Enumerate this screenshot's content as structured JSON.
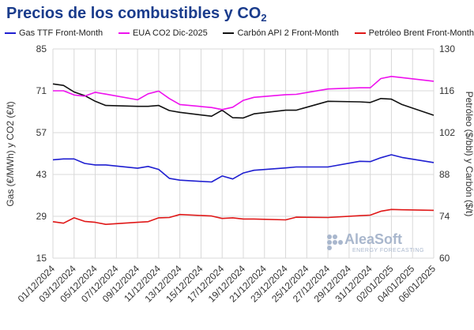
{
  "title_main": "Precios de los combustibles y CO",
  "title_subscript": "2",
  "watermark": {
    "brand": "AleaSoft",
    "tagline": "ENERGY FORECASTING"
  },
  "colors": {
    "gas": "#1f1fd1",
    "eua": "#ee11ee",
    "carbon": "#111111",
    "brent": "#e01818",
    "grid": "#d8d8d8",
    "axis_text": "#333333"
  },
  "chart_data": {
    "type": "line",
    "grid": true,
    "legend_position": "top",
    "x": [
      "01/12/2024",
      "02/12/2024",
      "03/12/2024",
      "04/12/2024",
      "05/12/2024",
      "06/12/2024",
      "09/12/2024",
      "10/12/2024",
      "11/12/2024",
      "12/12/2024",
      "13/12/2024",
      "16/12/2024",
      "17/12/2024",
      "18/12/2024",
      "19/12/2024",
      "20/12/2024",
      "23/12/2024",
      "24/12/2024",
      "27/12/2024",
      "30/12/2024",
      "31/12/2024",
      "01/01/2025",
      "02/01/2025",
      "03/01/2025",
      "06/01/2025"
    ],
    "x_tick_labels": [
      "01/12/2024",
      "03/12/2024",
      "05/12/2024",
      "07/12/2024",
      "09/12/2024",
      "11/12/2024",
      "13/12/2024",
      "15/12/2024",
      "17/12/2024",
      "19/12/2024",
      "21/12/2024",
      "23/12/2024",
      "25/12/2024",
      "27/12/2024",
      "29/12/2024",
      "31/12/2024",
      "02/01/2025",
      "04/01/2025",
      "06/01/2025"
    ],
    "x_start": "01/12/2024",
    "x_end": "06/01/2025",
    "y_left": {
      "label": "Gas (€/MWh) y CO2 (€/t)",
      "min": 15,
      "max": 85,
      "ticks": [
        15,
        29,
        43,
        57,
        71,
        85
      ]
    },
    "y_right": {
      "label": "Petróleo ($/bbl) y Carbón ($/t)",
      "min": 60,
      "max": 130,
      "ticks": [
        60,
        74,
        88,
        102,
        116,
        130
      ]
    },
    "series": [
      {
        "key": "gas",
        "name": "Gas TTF Front-Month",
        "axis": "left",
        "values": [
          47.9,
          48.2,
          48.2,
          46.7,
          46.2,
          46.2,
          45.1,
          45.7,
          44.7,
          41.7,
          41.1,
          40.5,
          42.5,
          41.5,
          43.5,
          44.4,
          45.2,
          45.5,
          45.5,
          47.4,
          47.3,
          48.6,
          49.6,
          48.7,
          47.0
        ]
      },
      {
        "key": "eua",
        "name": "EUA CO2 Dic-2025",
        "axis": "left",
        "values": [
          71.0,
          71.0,
          69.6,
          69.2,
          70.5,
          69.9,
          68.0,
          70.0,
          70.9,
          68.4,
          66.4,
          65.4,
          64.7,
          65.5,
          67.8,
          68.8,
          69.7,
          69.8,
          71.6,
          72.0,
          72.0,
          75.1,
          75.8,
          75.4,
          74.2
        ]
      },
      {
        "key": "carbon",
        "name": "Carbón API 2 Front-Month",
        "axis": "right",
        "values": [
          118.3,
          117.8,
          115.6,
          114.4,
          112.5,
          111.1,
          110.8,
          110.8,
          111.1,
          109.4,
          108.8,
          107.5,
          109.5,
          107.0,
          106.9,
          108.3,
          109.5,
          109.5,
          112.5,
          112.3,
          112.1,
          113.4,
          113.2,
          111.4,
          107.8
        ]
      },
      {
        "key": "brent",
        "name": "Petróleo Brent Front-Month",
        "axis": "right",
        "values": [
          72.2,
          71.7,
          73.5,
          72.3,
          72.0,
          71.3,
          72.0,
          72.2,
          73.5,
          73.6,
          74.6,
          74.1,
          73.3,
          73.5,
          73.1,
          73.1,
          72.8,
          73.7,
          73.6,
          74.2,
          74.4,
          75.7,
          76.3,
          76.2,
          76.0
        ]
      }
    ]
  }
}
